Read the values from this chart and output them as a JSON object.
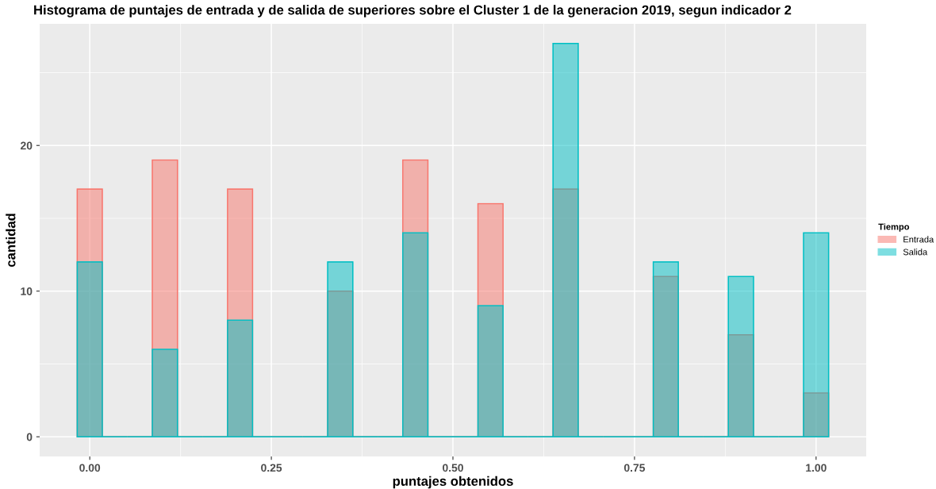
{
  "chart_data": {
    "type": "histogram",
    "title": "Histograma de puntajes de entrada y de salida de superiores sobre el Cluster 1 de la generacion 2019, segun indicador 2",
    "xlabel": "puntajes obtenidos",
    "ylabel": "cantidad",
    "legend_title": "Tiempo",
    "legend": "right",
    "grid": true,
    "bins": [
      -0.0172,
      0.0172,
      0.0517,
      0.0862,
      0.1207,
      0.1552,
      0.1897,
      0.2241,
      0.2586,
      0.2931,
      0.3276,
      0.3621,
      0.3966,
      0.431,
      0.4655,
      0.5,
      0.5345,
      0.569,
      0.6034,
      0.6379,
      0.6724,
      0.7069,
      0.7414,
      0.7759,
      0.8103,
      0.8448,
      0.8793,
      0.9138,
      0.9483,
      0.9828,
      1.0172
    ],
    "series": [
      {
        "name": "Entrada",
        "color": "#f8766d",
        "values": [
          17,
          0,
          0,
          19,
          0,
          0,
          17,
          0,
          0,
          0,
          10,
          0,
          0,
          19,
          0,
          0,
          16,
          0,
          0,
          17,
          0,
          0,
          0,
          11,
          0,
          0,
          7,
          0,
          0,
          3
        ]
      },
      {
        "name": "Salida",
        "color": "#00bfc4",
        "values": [
          12,
          0,
          0,
          6,
          0,
          0,
          8,
          0,
          0,
          0,
          12,
          0,
          0,
          14,
          0,
          0,
          9,
          0,
          0,
          27,
          0,
          0,
          0,
          12,
          0,
          0,
          11,
          0,
          0,
          14
        ]
      }
    ],
    "xlim": [
      -0.069,
      1.069
    ],
    "xticks": [
      {
        "value": 0,
        "label": "0.00"
      },
      {
        "value": 0.25,
        "label": "0.25"
      },
      {
        "value": 0.5,
        "label": "0.50"
      },
      {
        "value": 0.75,
        "label": "0.75"
      },
      {
        "value": 1,
        "label": "1.00"
      }
    ],
    "ylim": [
      -1.35,
      28.35
    ],
    "yticks": [
      0,
      10,
      20
    ]
  }
}
